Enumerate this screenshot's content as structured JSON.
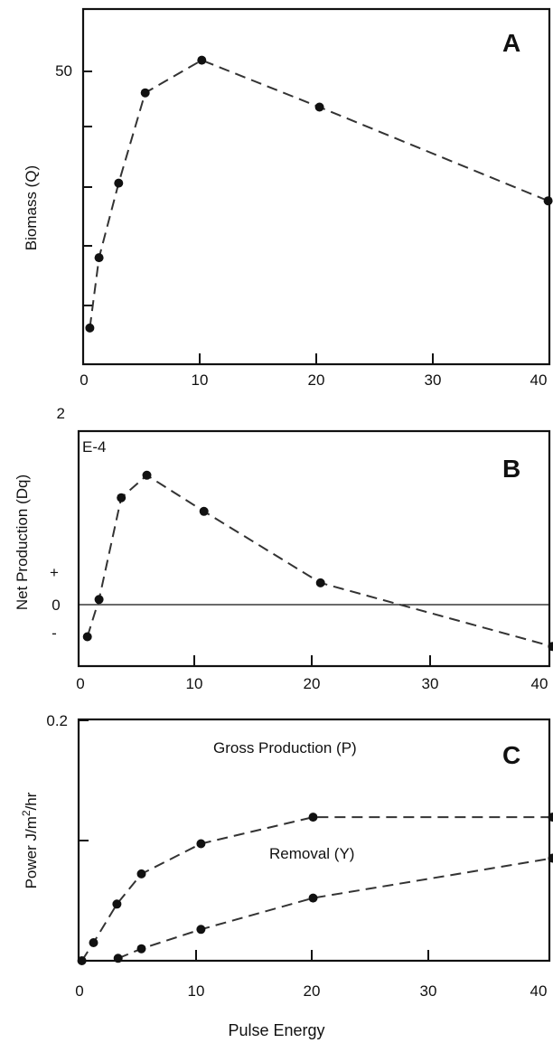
{
  "figure": {
    "xlabel": "Pulse Energy"
  },
  "chart_data": [
    {
      "type": "line",
      "panel_letter": "A",
      "ylabel": "Biomass (Q)",
      "xlim": [
        0,
        40
      ],
      "ylim": [
        10,
        60
      ],
      "xticks": [
        0,
        10,
        20,
        30,
        40
      ],
      "xtick_labels": [
        "0",
        "10",
        "20",
        "30",
        "40"
      ],
      "yticks": [
        50
      ],
      "ytick_labels": [
        "50"
      ],
      "yticks_minor": [
        15,
        20,
        30,
        40
      ],
      "series": [
        {
          "x": [
            0.5,
            1.3,
            3,
            5.3,
            10.2,
            20.4,
            40.2
          ],
          "y": [
            15.1,
            25,
            35.5,
            48.2,
            52.8,
            46.2,
            33
          ]
        }
      ]
    },
    {
      "type": "line",
      "panel_letter": "B",
      "ylabel": "Net Production (Dq)",
      "xlim": [
        0,
        40
      ],
      "ylim": [
        -0.4,
        2
      ],
      "xticks": [
        0,
        10,
        20,
        30,
        40
      ],
      "xtick_labels": [
        "0",
        "10",
        "20",
        "30",
        "40"
      ],
      "ytick_top_label": "2",
      "scale_label": "E-4",
      "sign_labels": [
        "+",
        "0",
        "-"
      ],
      "zero_line": true,
      "series": [
        {
          "x": [
            0.6,
            1.6,
            3.5,
            5.7,
            10.6,
            20.6,
            40.5
          ],
          "y": [
            -0.1,
            0.28,
            1.32,
            1.55,
            1.18,
            0.45,
            -0.2
          ]
        }
      ]
    },
    {
      "type": "line",
      "panel_letter": "C",
      "ylabel": "Power J/m2/hr",
      "xlim": [
        0,
        40
      ],
      "ylim": [
        0,
        0.2
      ],
      "xticks": [
        0,
        10,
        20,
        30,
        40
      ],
      "xtick_labels": [
        "0",
        "10",
        "20",
        "30",
        "40"
      ],
      "yticks": [
        0.2,
        0.1
      ],
      "ytick_labels": [
        "0.2",
        ""
      ],
      "series": [
        {
          "name": "Gross Production (P)",
          "x": [
            0.2,
            1.2,
            3.2,
            5.3,
            10.4,
            20,
            40.5
          ],
          "y": [
            0,
            0.015,
            0.047,
            0.072,
            0.097,
            0.119,
            0.119
          ]
        },
        {
          "name": "Removal (Y)",
          "x": [
            3.3,
            5.3,
            10.4,
            20,
            40.5
          ],
          "y": [
            0.002,
            0.01,
            0.026,
            0.052,
            0.085
          ]
        }
      ]
    }
  ]
}
